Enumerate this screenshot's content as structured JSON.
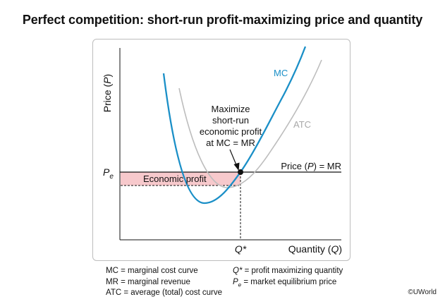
{
  "title": "Perfect competition: short-run profit-maximizing price and quantity",
  "axes": {
    "y_label_text": "Price (",
    "y_label_symbol": "P",
    "y_label_close": ")",
    "x_label_text": "Quantity (",
    "x_label_symbol": "Q",
    "x_label_close": ")",
    "pe_main": "P",
    "pe_sub": "e",
    "qstar": "Q*"
  },
  "curves": {
    "mc": "MC",
    "atc": "ATC",
    "mr_prefix": "Price (",
    "mr_symbol": "P",
    "mr_suffix": ") = MR",
    "mc_color": "#1a8fc7",
    "atc_color": "#bdbdbd"
  },
  "annotations": {
    "economic_profit": "Economic profit",
    "maximize_lines": [
      "Maximize",
      "short-run",
      "economic profit",
      "at MC = MR"
    ],
    "profit_fill": "#f7c9cc"
  },
  "legend": {
    "left": [
      "MC = marginal cost curve",
      "MR = marginal revenue",
      "ATC = average (total) cost curve"
    ],
    "right_q_symbol": "Q*",
    "right_q_text": " = profit maximizing quantity",
    "right_p_main": "P",
    "right_p_sub": "e",
    "right_p_text": " = market equilibrium price"
  },
  "copyright": "©UWorld"
}
